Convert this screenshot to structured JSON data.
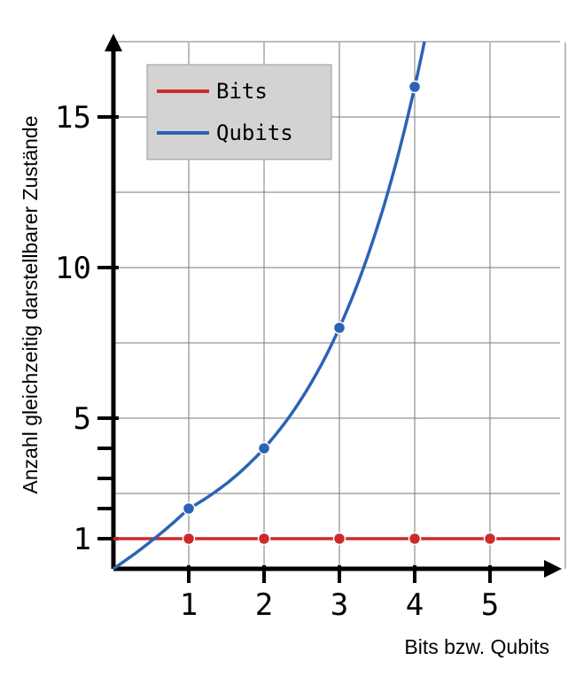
{
  "chart_data": {
    "type": "line",
    "xlabel": "Bits bzw. Qubits",
    "ylabel": "Anzahl gleichzeitig darstellbarer Zustände",
    "xlim": [
      0,
      6
    ],
    "ylim": [
      0,
      17.5
    ],
    "x_ticks": [
      "1",
      "2",
      "3",
      "4",
      "5"
    ],
    "y_ticks": [
      "1",
      "5",
      "10",
      "15"
    ],
    "y_minor_ticks": [
      2,
      3,
      4
    ],
    "grid": true,
    "legend_position": "top-left",
    "series": [
      {
        "name": "Bits",
        "color": "#cc2b2b",
        "points": [
          {
            "x": 1,
            "y": 1
          },
          {
            "x": 2,
            "y": 1
          },
          {
            "x": 3,
            "y": 1
          },
          {
            "x": 4,
            "y": 1
          },
          {
            "x": 5,
            "y": 1
          }
        ],
        "line": "constant y = 1"
      },
      {
        "name": "Qubits",
        "color": "#2b63b5",
        "points": [
          {
            "x": 1,
            "y": 2
          },
          {
            "x": 2,
            "y": 4
          },
          {
            "x": 3,
            "y": 8
          },
          {
            "x": 4,
            "y": 16
          }
        ],
        "line": "curve through points"
      }
    ]
  }
}
